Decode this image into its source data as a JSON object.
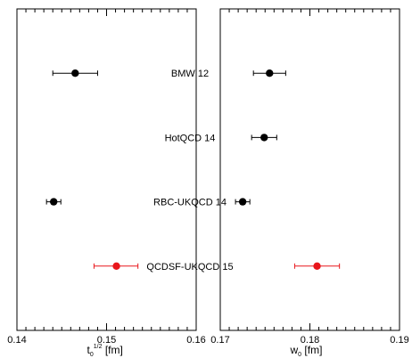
{
  "chart_data": [
    {
      "type": "scatter",
      "panel": "left",
      "xlabel": {
        "base": "t",
        "sub": "0",
        "sup": "1/2",
        "unit": " [fm]"
      },
      "xlim": [
        0.14,
        0.16
      ],
      "xticks": [
        "0.14",
        "0.15",
        "0.16"
      ],
      "ylim": [
        0,
        5
      ],
      "grid": false,
      "series": [
        {
          "label": "BMW 12",
          "x": 0.1465,
          "xerr_low": 0.0025,
          "xerr_high": 0.0025,
          "y": 4,
          "color": "#000000"
        },
        {
          "label": "RBC-UKQCD 14",
          "x": 0.1441,
          "xerr_low": 0.0008,
          "xerr_high": 0.0008,
          "y": 2,
          "color": "#000000"
        },
        {
          "label": "QCDSF-UKQCD 15",
          "x": 0.1511,
          "xerr_low": 0.0025,
          "xerr_high": 0.0024,
          "y": 1,
          "color": "#e8161b"
        }
      ]
    },
    {
      "type": "scatter",
      "panel": "right",
      "xlabel": {
        "base": "w",
        "sub": "0",
        "sup": "",
        "unit": " [fm]"
      },
      "xlim": [
        0.17,
        0.19
      ],
      "xticks": [
        "0.17",
        "0.18",
        "0.19"
      ],
      "ylim": [
        0,
        5
      ],
      "grid": false,
      "series": [
        {
          "label": "BMW 12",
          "x": 0.1755,
          "xerr_low": 0.0018,
          "xerr_high": 0.0018,
          "y": 4,
          "color": "#000000"
        },
        {
          "label": "HotQCD 14",
          "x": 0.1749,
          "xerr_low": 0.0014,
          "xerr_high": 0.0014,
          "y": 3,
          "color": "#000000"
        },
        {
          "label": "RBC-UKQCD 14",
          "x": 0.1725,
          "xerr_low": 0.0008,
          "xerr_high": 0.0008,
          "y": 2,
          "color": "#000000"
        },
        {
          "label": "QCDSF-UKQCD 15",
          "x": 0.1808,
          "xerr_low": 0.0025,
          "xerr_high": 0.0025,
          "y": 1,
          "color": "#e8161b"
        }
      ]
    }
  ],
  "collaborations": [
    {
      "label": "BMW 12",
      "y": 4
    },
    {
      "label": "HotQCD 14",
      "y": 3
    },
    {
      "label": "RBC-UKQCD 14",
      "y": 2
    },
    {
      "label": "QCDSF-UKQCD 15",
      "y": 1
    }
  ]
}
